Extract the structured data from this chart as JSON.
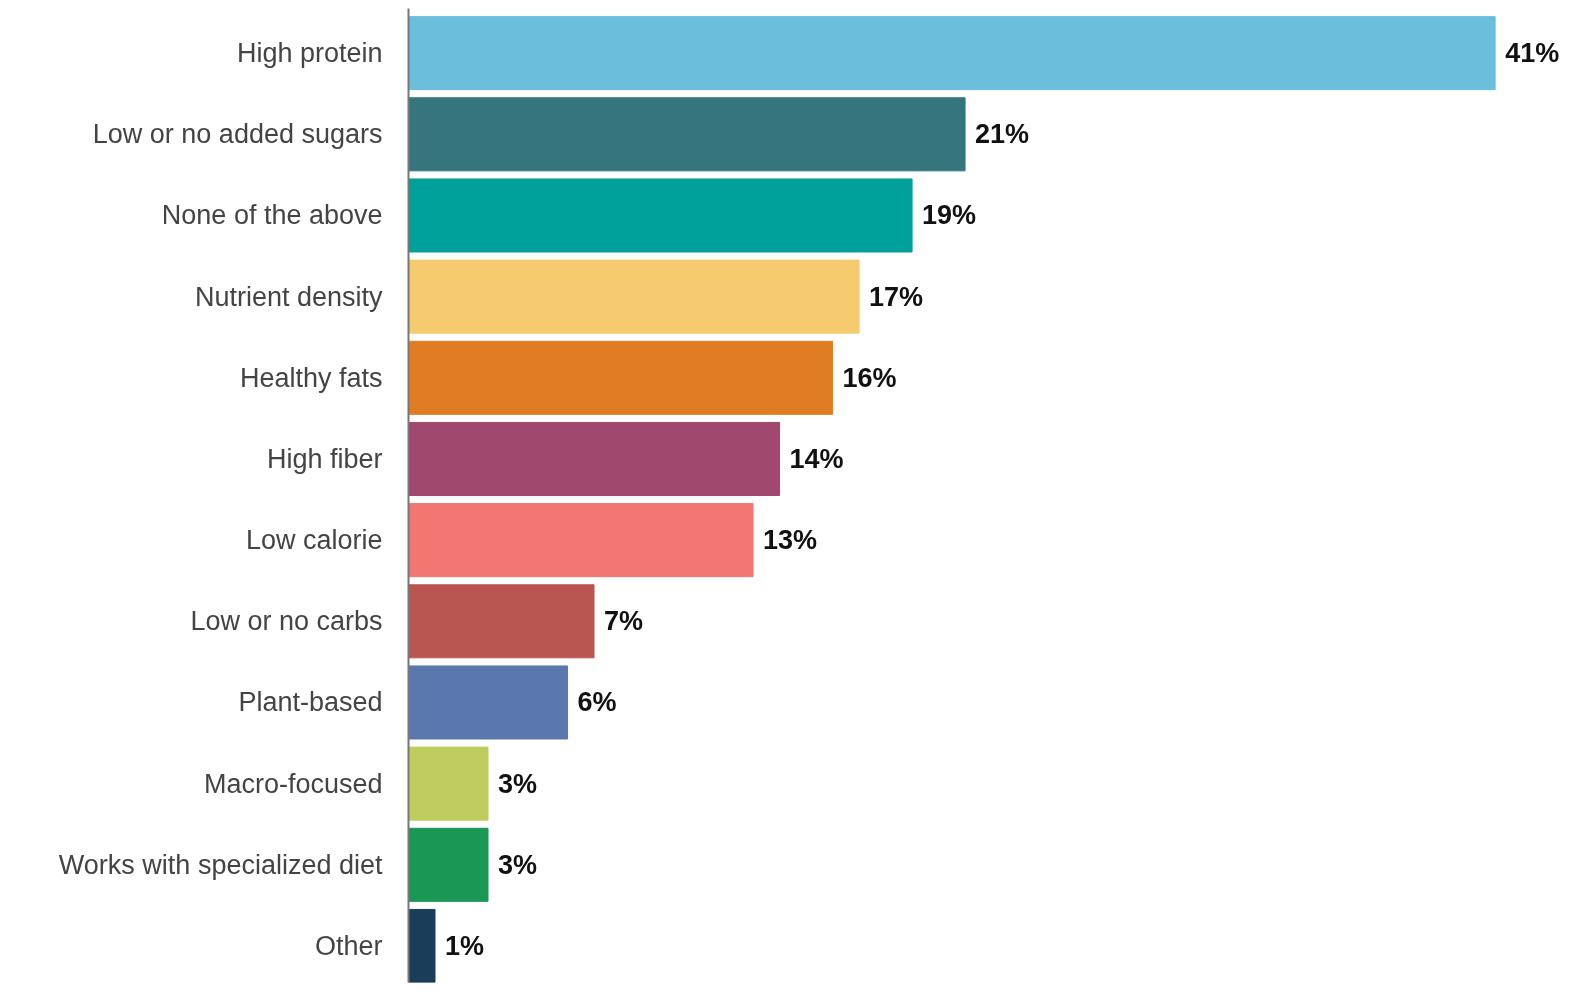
{
  "chart_data": {
    "type": "bar",
    "orientation": "horizontal",
    "categories": [
      "High protein",
      "Low or no added sugars",
      "None of the above",
      "Nutrient density",
      "Healthy fats",
      "High fiber",
      "Low calorie",
      "Low or no carbs",
      "Plant-based",
      "Macro-focused",
      "Works with specialized diet",
      "Other"
    ],
    "values": [
      41,
      21,
      19,
      17,
      16,
      14,
      13,
      7,
      6,
      3,
      3,
      1
    ],
    "colors": [
      "#6bbedc",
      "#35767e",
      "#00a19b",
      "#f6cb6f",
      "#e07d24",
      "#a0486d",
      "#f27672",
      "#b95651",
      "#5b78ae",
      "#bfcd5f",
      "#1a9655",
      "#1a3e5a"
    ],
    "value_labels": [
      "41%",
      "21%",
      "19%",
      "17%",
      "16%",
      "14%",
      "13%",
      "7%",
      "6%",
      "3%",
      "3%",
      "1%"
    ],
    "grid": false
  }
}
